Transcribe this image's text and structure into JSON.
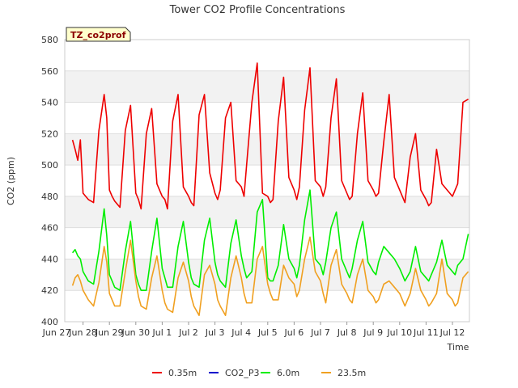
{
  "chart_data": {
    "type": "line",
    "title": "Tower CO2 Profile Concentrations",
    "badge": "TZ_co2prof",
    "xlabel": "Time",
    "ylabel": "CO2 (ppm)",
    "ylim": [
      400,
      580
    ],
    "yticks": [
      400,
      420,
      440,
      460,
      480,
      500,
      520,
      540,
      560,
      580
    ],
    "xlim": [
      0,
      16
    ],
    "xticks": [
      {
        "pos": 0,
        "label": "Jun 27"
      },
      {
        "pos": 1,
        "label": "Jun 28"
      },
      {
        "pos": 2,
        "label": "Jun 29"
      },
      {
        "pos": 3,
        "label": "Jun 30"
      },
      {
        "pos": 4,
        "label": "Jul 1"
      },
      {
        "pos": 5,
        "label": "Jul 2"
      },
      {
        "pos": 6,
        "label": "Jul 3"
      },
      {
        "pos": 7,
        "label": "Jul 4"
      },
      {
        "pos": 8,
        "label": "Jul 5"
      },
      {
        "pos": 9,
        "label": "Jul 6"
      },
      {
        "pos": 10,
        "label": "Jul 7"
      },
      {
        "pos": 11,
        "label": "Jul 8"
      },
      {
        "pos": 12,
        "label": "Jul 9"
      },
      {
        "pos": 13,
        "label": "Jul 10"
      },
      {
        "pos": 14,
        "label": "Jul 11"
      },
      {
        "pos": 15,
        "label": "Jul 12"
      }
    ],
    "series": [
      {
        "name": "0.35m",
        "color": "#ee0000",
        "x": [
          0.6,
          0.7,
          0.8,
          0.9,
          1.0,
          1.2,
          1.4,
          1.6,
          1.8,
          1.9,
          2.0,
          2.1,
          2.2,
          2.4,
          2.6,
          2.8,
          3.0,
          3.1,
          3.2,
          3.4,
          3.6,
          3.8,
          4.0,
          4.1,
          4.2,
          4.4,
          4.6,
          4.8,
          5.0,
          5.1,
          5.2,
          5.4,
          5.6,
          5.8,
          6.0,
          6.1,
          6.2,
          6.4,
          6.6,
          6.8,
          7.0,
          7.1,
          7.2,
          7.4,
          7.6,
          7.8,
          8.0,
          8.1,
          8.2,
          8.4,
          8.6,
          8.8,
          9.0,
          9.1,
          9.2,
          9.4,
          9.6,
          9.8,
          10.0,
          10.1,
          10.2,
          10.4,
          10.6,
          10.8,
          11.0,
          11.1,
          11.2,
          11.4,
          11.6,
          11.8,
          12.0,
          12.1,
          12.2,
          12.4,
          12.6,
          12.8,
          13.0,
          13.1,
          13.2,
          13.4,
          13.6,
          13.8,
          14.0,
          14.1,
          14.2,
          14.4,
          14.6,
          14.8,
          15.0,
          15.1,
          15.2,
          15.4,
          15.6
        ],
        "values": [
          516,
          510,
          503,
          516,
          482,
          478,
          476,
          522,
          545,
          530,
          484,
          480,
          477,
          473,
          522,
          538,
          482,
          478,
          472,
          520,
          536,
          488,
          480,
          478,
          472,
          528,
          545,
          486,
          480,
          476,
          474,
          532,
          545,
          495,
          482,
          478,
          484,
          530,
          540,
          490,
          486,
          480,
          500,
          540,
          565,
          482,
          480,
          476,
          478,
          528,
          556,
          492,
          484,
          478,
          486,
          535,
          562,
          490,
          486,
          480,
          486,
          530,
          555,
          490,
          482,
          478,
          480,
          520,
          546,
          490,
          484,
          480,
          482,
          515,
          545,
          492,
          484,
          480,
          476,
          505,
          520,
          484,
          478,
          474,
          476,
          510,
          488,
          484,
          480,
          484,
          488,
          540,
          542
        ]
      },
      {
        "name": "CO2_P3",
        "color": "#0000cc",
        "x": [],
        "values": []
      },
      {
        "name": "6.0m",
        "color": "#00ee00",
        "x": [
          0.6,
          0.7,
          0.8,
          0.9,
          1.0,
          1.2,
          1.4,
          1.6,
          1.8,
          1.9,
          2.0,
          2.1,
          2.2,
          2.4,
          2.6,
          2.8,
          3.0,
          3.1,
          3.2,
          3.4,
          3.6,
          3.8,
          4.0,
          4.1,
          4.2,
          4.4,
          4.6,
          4.8,
          5.0,
          5.1,
          5.2,
          5.4,
          5.6,
          5.8,
          6.0,
          6.1,
          6.2,
          6.4,
          6.6,
          6.8,
          7.0,
          7.1,
          7.2,
          7.4,
          7.6,
          7.8,
          8.0,
          8.1,
          8.2,
          8.4,
          8.6,
          8.8,
          9.0,
          9.1,
          9.2,
          9.4,
          9.6,
          9.8,
          10.0,
          10.1,
          10.2,
          10.4,
          10.6,
          10.8,
          11.0,
          11.1,
          11.2,
          11.4,
          11.6,
          11.8,
          12.0,
          12.1,
          12.2,
          12.4,
          12.6,
          12.8,
          13.0,
          13.1,
          13.2,
          13.4,
          13.6,
          13.8,
          14.0,
          14.1,
          14.2,
          14.4,
          14.6,
          14.8,
          15.0,
          15.1,
          15.2,
          15.4,
          15.6
        ],
        "values": [
          444,
          446,
          442,
          440,
          432,
          426,
          424,
          445,
          472,
          455,
          430,
          426,
          422,
          420,
          445,
          464,
          430,
          424,
          420,
          420,
          445,
          466,
          434,
          428,
          422,
          422,
          448,
          464,
          438,
          428,
          424,
          422,
          452,
          466,
          438,
          430,
          426,
          422,
          450,
          465,
          442,
          434,
          428,
          432,
          470,
          478,
          428,
          426,
          426,
          436,
          462,
          440,
          434,
          428,
          436,
          465,
          484,
          440,
          436,
          430,
          438,
          460,
          470,
          440,
          432,
          428,
          434,
          452,
          464,
          438,
          432,
          430,
          438,
          448,
          444,
          440,
          434,
          430,
          426,
          432,
          448,
          432,
          428,
          426,
          430,
          438,
          452,
          436,
          432,
          430,
          436,
          440,
          456
        ]
      },
      {
        "name": "23.5m",
        "color": "#f0a020",
        "x": [
          0.6,
          0.7,
          0.8,
          0.9,
          1.0,
          1.2,
          1.4,
          1.6,
          1.8,
          1.9,
          2.0,
          2.1,
          2.2,
          2.4,
          2.6,
          2.8,
          3.0,
          3.1,
          3.2,
          3.4,
          3.6,
          3.8,
          4.0,
          4.1,
          4.2,
          4.4,
          4.6,
          4.8,
          5.0,
          5.1,
          5.2,
          5.4,
          5.6,
          5.8,
          6.0,
          6.1,
          6.2,
          6.4,
          6.6,
          6.8,
          7.0,
          7.1,
          7.2,
          7.4,
          7.6,
          7.8,
          8.0,
          8.1,
          8.2,
          8.4,
          8.6,
          8.8,
          9.0,
          9.1,
          9.2,
          9.4,
          9.6,
          9.8,
          10.0,
          10.1,
          10.2,
          10.4,
          10.6,
          10.8,
          11.0,
          11.1,
          11.2,
          11.4,
          11.6,
          11.8,
          12.0,
          12.1,
          12.2,
          12.4,
          12.6,
          12.8,
          13.0,
          13.1,
          13.2,
          13.4,
          13.6,
          13.8,
          14.0,
          14.1,
          14.2,
          14.4,
          14.6,
          14.8,
          15.0,
          15.1,
          15.2,
          15.4,
          15.6
        ],
        "values": [
          423,
          428,
          430,
          426,
          420,
          414,
          410,
          425,
          448,
          438,
          418,
          414,
          410,
          410,
          432,
          452,
          426,
          416,
          410,
          408,
          428,
          442,
          420,
          412,
          408,
          406,
          428,
          438,
          426,
          416,
          410,
          404,
          430,
          436,
          424,
          414,
          410,
          404,
          428,
          442,
          428,
          418,
          412,
          412,
          440,
          448,
          424,
          418,
          414,
          414,
          436,
          428,
          424,
          416,
          420,
          440,
          454,
          432,
          426,
          418,
          412,
          436,
          446,
          424,
          418,
          414,
          412,
          430,
          440,
          420,
          416,
          412,
          414,
          424,
          426,
          422,
          418,
          414,
          410,
          418,
          434,
          420,
          414,
          410,
          412,
          418,
          440,
          418,
          414,
          410,
          412,
          428,
          432
        ]
      }
    ]
  }
}
